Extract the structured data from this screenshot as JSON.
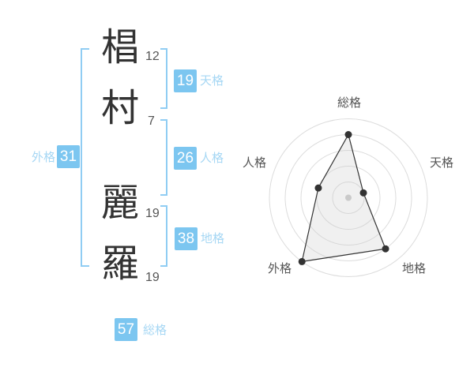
{
  "name_panel": {
    "characters": [
      {
        "char": "椙",
        "strokes": "12"
      },
      {
        "char": "村",
        "strokes": "7"
      },
      {
        "char": "麗",
        "strokes": "19"
      },
      {
        "char": "羅",
        "strokes": "19"
      }
    ],
    "kaku": {
      "tenkaku": {
        "label": "天格",
        "value": "19"
      },
      "jinkaku": {
        "label": "人格",
        "value": "26"
      },
      "chikaku": {
        "label": "地格",
        "value": "38"
      },
      "gaikaku": {
        "label": "外格",
        "value": "31"
      },
      "soukaku": {
        "label": "総格",
        "value": "57"
      }
    },
    "colors": {
      "badge_bg": "#7cc6f0",
      "kaku_label_text": "#a6d7f4",
      "bracket": "#90cdf3",
      "kanji_text": "#333333",
      "stroke_count_text": "#555555"
    }
  },
  "chart_data": {
    "type": "radar",
    "categories": [
      "総格",
      "天格",
      "地格",
      "外格",
      "人格"
    ],
    "values": [
      4,
      1,
      4,
      5,
      2
    ],
    "max": 5,
    "rings": 5,
    "start_angle_deg": -90,
    "direction": "clockwise",
    "grid": "circular",
    "legend_position": "none",
    "ring_color": "#dcdcdc",
    "line_color": "#333333",
    "point_color": "#333333",
    "fill_color": "rgba(205,205,205,0.3)",
    "center_dot_color": "#c9c9c9",
    "label_color": "#555555"
  }
}
